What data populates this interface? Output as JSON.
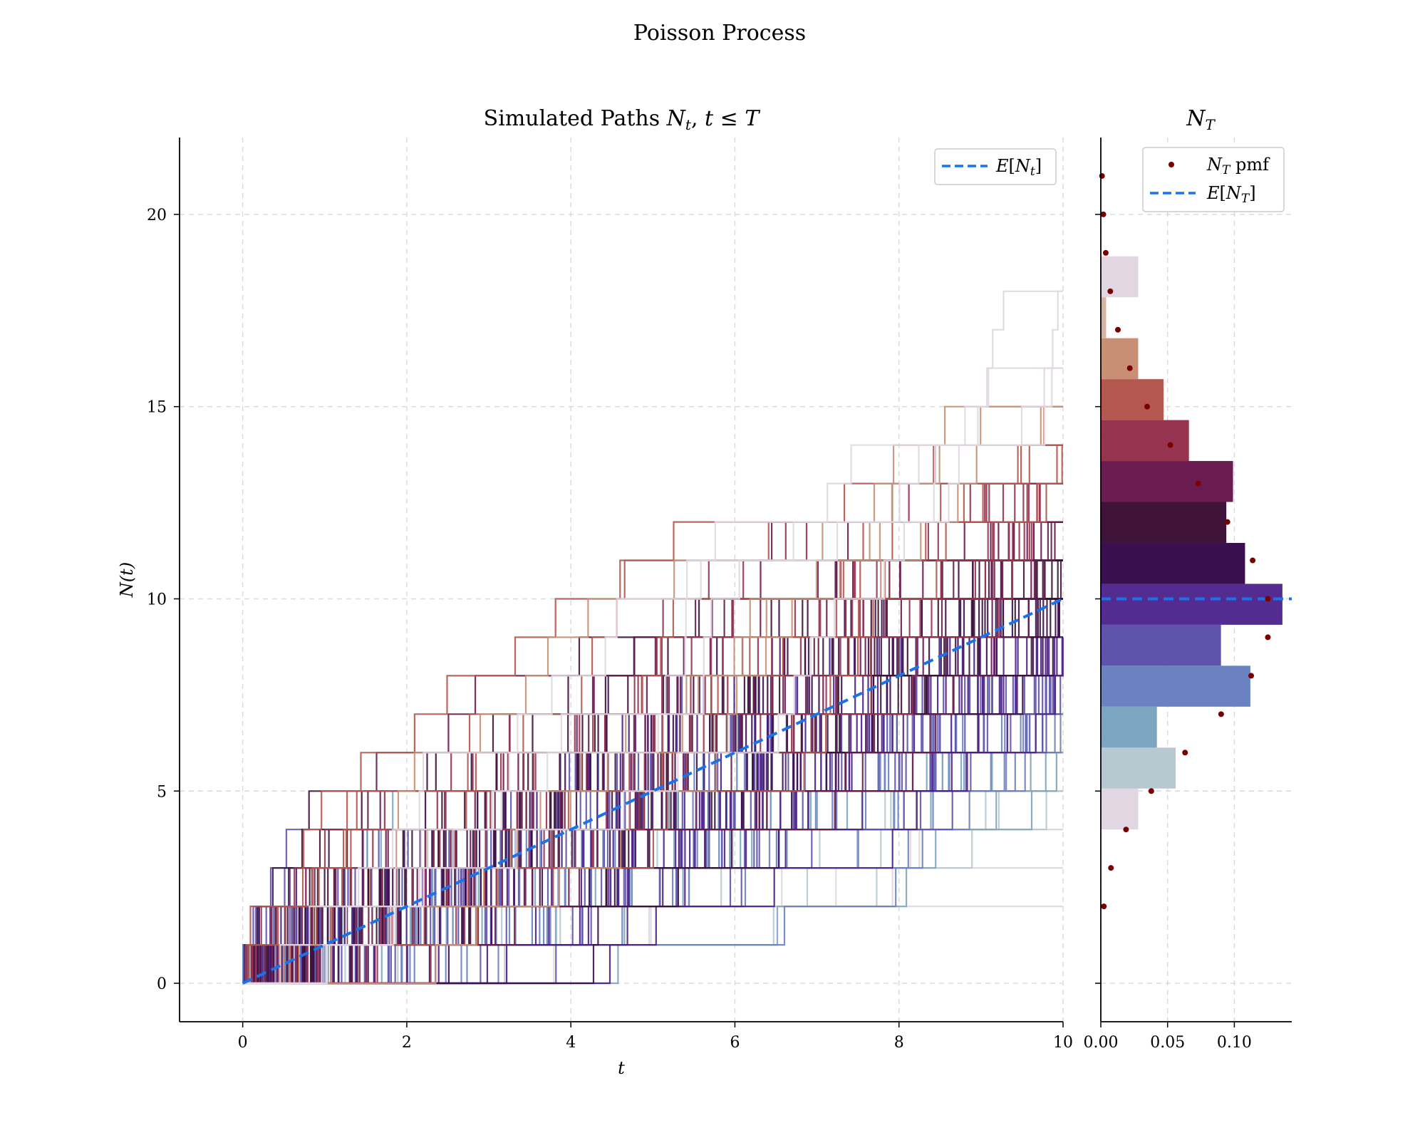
{
  "figure": {
    "suptitle": "Poisson Process"
  },
  "chart_data": [
    {
      "type": "line",
      "title": "Simulated Paths N_t, t ≤ T",
      "xlabel": "t",
      "ylabel": "N(t)",
      "xlim": [
        -0.77,
        10
      ],
      "ylim": [
        -1,
        22
      ],
      "xticks": [
        "0",
        "2",
        "4",
        "6",
        "8",
        "10"
      ],
      "yticks": [
        "0",
        "5",
        "10",
        "15",
        "20"
      ],
      "grid": true,
      "legend_position": "top-right",
      "legend": [
        "E[N_t]"
      ],
      "expected_line": {
        "name": "E[N_t]",
        "x": [
          0,
          10
        ],
        "y": [
          0,
          10
        ],
        "color": "#1a73e8",
        "style": "dashed"
      },
      "paths": {
        "count": 200,
        "rate": 1.0,
        "T": 10,
        "kind": "step",
        "colormap": "twilight",
        "final_counts": [
          2,
          3,
          3,
          4,
          4,
          4,
          5,
          5,
          5,
          5,
          5,
          5,
          5,
          6,
          6,
          6,
          6,
          6,
          6,
          6,
          6,
          6,
          6,
          6,
          6,
          6,
          7,
          7,
          7,
          7,
          7,
          7,
          7,
          7,
          7,
          7,
          7,
          7,
          7,
          7,
          7,
          7,
          7,
          7,
          7,
          7,
          7,
          8,
          8,
          8,
          8,
          8,
          8,
          8,
          8,
          8,
          8,
          8,
          8,
          8,
          8,
          8,
          8,
          8,
          8,
          8,
          8,
          8,
          8,
          8,
          8,
          8,
          8,
          8,
          8,
          8,
          8,
          8,
          8,
          8,
          8,
          8,
          9,
          9,
          9,
          9,
          9,
          9,
          9,
          9,
          9,
          9,
          9,
          9,
          9,
          9,
          9,
          9,
          9,
          9,
          9,
          9,
          9,
          9,
          9,
          9,
          9,
          9,
          9,
          9,
          9,
          9,
          10,
          10,
          10,
          10,
          10,
          10,
          10,
          10,
          10,
          10,
          10,
          10,
          10,
          10,
          10,
          10,
          10,
          10,
          10,
          10,
          10,
          10,
          10,
          10,
          10,
          10,
          10,
          11,
          11,
          11,
          11,
          11,
          11,
          11,
          11,
          11,
          11,
          11,
          11,
          11,
          11,
          11,
          11,
          11,
          11,
          11,
          11,
          12,
          12,
          12,
          12,
          12,
          12,
          12,
          12,
          12,
          12,
          12,
          12,
          12,
          12,
          12,
          13,
          13,
          13,
          13,
          13,
          13,
          13,
          13,
          13,
          13,
          13,
          13,
          13,
          14,
          14,
          14,
          14,
          14,
          14,
          15,
          15,
          15,
          15,
          16,
          16,
          18,
          18
        ]
      }
    },
    {
      "type": "bar",
      "orientation": "horizontal",
      "title": "N_T",
      "xticks": [
        "0.00",
        "0.05",
        "0.10"
      ],
      "xlim": [
        0,
        0.143
      ],
      "ylim": [
        -1,
        22
      ],
      "grid": true,
      "legend_position": "top-right",
      "legend": [
        "N_T pmf",
        "E[N_T]"
      ],
      "histogram": {
        "bin_width": 1.065,
        "bins": [
          {
            "y0": 4.0,
            "value": 0.028
          },
          {
            "y0": 5.065,
            "value": 0.056
          },
          {
            "y0": 6.13,
            "value": 0.042
          },
          {
            "y0": 7.195,
            "value": 0.112
          },
          {
            "y0": 8.26,
            "value": 0.09
          },
          {
            "y0": 9.325,
            "value": 0.136
          },
          {
            "y0": 10.39,
            "value": 0.108
          },
          {
            "y0": 11.455,
            "value": 0.094
          },
          {
            "y0": 12.52,
            "value": 0.099
          },
          {
            "y0": 13.585,
            "value": 0.066
          },
          {
            "y0": 14.65,
            "value": 0.047
          },
          {
            "y0": 15.715,
            "value": 0.028
          },
          {
            "y0": 16.78,
            "value": 0.004
          },
          {
            "y0": 17.845,
            "value": 0.028
          }
        ]
      },
      "pmf": {
        "name": "N_T pmf",
        "color": "#7a0000",
        "k": [
          2,
          3,
          4,
          5,
          6,
          7,
          8,
          9,
          10,
          11,
          12,
          13,
          14,
          15,
          16,
          17,
          18,
          19,
          20,
          21
        ],
        "p": [
          0.0023,
          0.0076,
          0.0189,
          0.0378,
          0.0631,
          0.0901,
          0.1126,
          0.1251,
          0.1251,
          0.1137,
          0.0948,
          0.0729,
          0.0521,
          0.0347,
          0.0217,
          0.0128,
          0.0071,
          0.0037,
          0.0019,
          0.0009
        ]
      },
      "expected_line": {
        "name": "E[N_T]",
        "y": 10,
        "color": "#1a73e8",
        "style": "dashed"
      }
    }
  ]
}
